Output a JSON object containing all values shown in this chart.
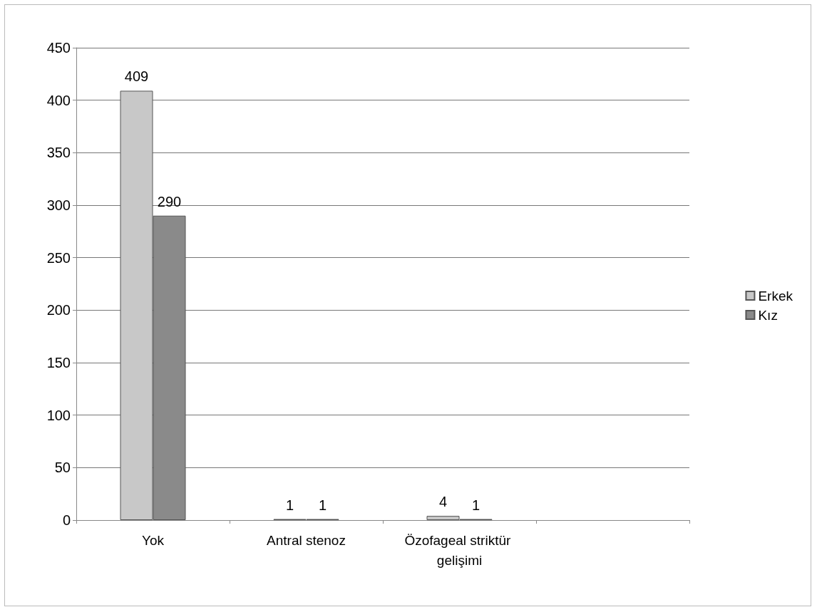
{
  "chart_data": {
    "type": "bar",
    "categories": [
      "Yok",
      "Antral stenoz",
      "Özofageal striktür gelişimi",
      null
    ],
    "series": [
      {
        "name": "Erkek",
        "color": "#c8c8c8",
        "values": [
          409,
          1,
          4,
          null
        ]
      },
      {
        "name": "Kız",
        "color": "#8a8a8a",
        "values": [
          290,
          1,
          1,
          null
        ]
      }
    ],
    "ylim": [
      0,
      450
    ],
    "yticks": [
      0,
      50,
      100,
      150,
      200,
      250,
      300,
      350,
      400,
      450
    ],
    "grid": "y",
    "legend": "right",
    "data_labels": true
  }
}
